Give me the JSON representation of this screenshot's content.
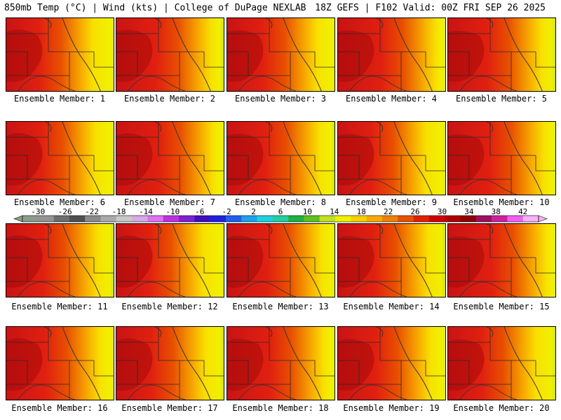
{
  "header": {
    "left": "850mb Temp (°C) | Wind (kts) | College of DuPage NEXLAB",
    "right": "18Z GEFS | F102 Valid: 00Z FRI SEP 26 2025"
  },
  "member_prefix": "Ensemble Member:",
  "members": [
    1,
    2,
    3,
    4,
    5,
    6,
    7,
    8,
    9,
    10,
    11,
    12,
    13,
    14,
    15,
    16,
    17,
    18,
    19,
    20
  ],
  "colorbar": {
    "tick_labels": [
      "-30",
      "-26",
      "-22",
      "-18",
      "-14",
      "-10",
      "-6",
      "-2",
      "2",
      "6",
      "10",
      "14",
      "18",
      "22",
      "26",
      "30",
      "34",
      "38",
      "42"
    ],
    "colors": [
      "#8c9c8c",
      "#949494",
      "#6e6e6e",
      "#505050",
      "#8a8a8a",
      "#aaaaaa",
      "#c8c8c8",
      "#d8a8e8",
      "#e070f0",
      "#c030e0",
      "#8020d0",
      "#4010c0",
      "#2020e0",
      "#2060f0",
      "#20a0f0",
      "#20d0e0",
      "#20d0a0",
      "#20b040",
      "#60c020",
      "#c0e020",
      "#f0f000",
      "#f8d000",
      "#f8a800",
      "#f08000",
      "#e85000",
      "#e02000",
      "#d00000",
      "#b00000",
      "#900000",
      "#a01060",
      "#d020a0",
      "#f060f0",
      "#f8b0f8"
    ]
  }
}
